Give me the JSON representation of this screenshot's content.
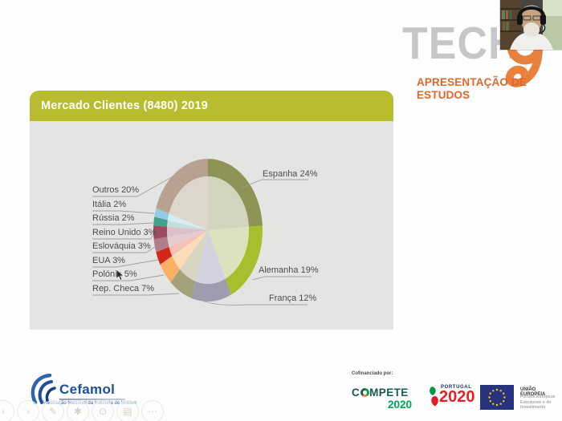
{
  "header": {
    "brand": "TECH",
    "brand_digit": "9",
    "subtitle": "APRESENTAÇÃO DE ESTUDOS",
    "brand_color": "#c7c7c7",
    "accent_color": "#e2662c"
  },
  "chart_data": {
    "type": "pie",
    "title": "Mercado Clientes (8480) 2019",
    "direction": "clockwise",
    "start_angle_deg": 0,
    "legend_position": "callout-labels",
    "title_bar_color": "#b7bd2e",
    "panel_color": "#e4e4e2",
    "slices": [
      {
        "name": "Espanha",
        "value": 24,
        "label": "Espanha 24%",
        "outer_color": "#8d9355",
        "inner_color": "#d2d5bd"
      },
      {
        "name": "Alemanha",
        "value": 19,
        "label": "Alemanha 19%",
        "outer_color": "#a8bf2d",
        "inner_color": "#dbe2bd"
      },
      {
        "name": "França",
        "value": 12,
        "label": "França 12%",
        "outer_color": "#9d9dae",
        "inner_color": "#d3d3df"
      },
      {
        "name": "Rep. Checa",
        "value": 7,
        "label": "Rep. Checa 7%",
        "outer_color": "#a5a17b",
        "inner_color": "#d8d6c3"
      },
      {
        "name": "Polónia",
        "value": 5,
        "label": "Polónia 5%",
        "outer_color": "#f8b065",
        "inner_color": "#fcdcb8"
      },
      {
        "name": "EUA",
        "value": 3,
        "label": "EUA 3%",
        "outer_color": "#d3271c",
        "inner_color": "#f5c0b5"
      },
      {
        "name": "Eslováquia",
        "value": 3,
        "label": "Eslováquia 3%",
        "outer_color": "#b17d88",
        "inner_color": "#e4ccd2"
      },
      {
        "name": "Reino Unido",
        "value": 3,
        "label": "Reino Unido 3%",
        "outer_color": "#9b4a5f",
        "inner_color": "#ddc0ca"
      },
      {
        "name": "Rússia",
        "value": 2,
        "label": "Rússia 2%",
        "outer_color": "#43a18a",
        "inner_color": "#c5e0d8"
      },
      {
        "name": "Itália",
        "value": 2,
        "label": "Itália 2%",
        "outer_color": "#93cce4",
        "inner_color": "#d9edf5"
      },
      {
        "name": "Outros",
        "value": 20,
        "label": "Outros 20%",
        "outer_color": "#b9a191",
        "inner_color": "#ded5cd"
      }
    ]
  },
  "footer": {
    "cefamol": {
      "name": "Cefamol",
      "subtitle": "Associação Nacional da Indústria de Moldes"
    },
    "controls": [
      {
        "glyph": "‹"
      },
      {
        "glyph": "›"
      },
      {
        "glyph": "✎"
      },
      {
        "glyph": "✱"
      },
      {
        "glyph": "⊙"
      },
      {
        "glyph": "▤"
      },
      {
        "glyph": "⋯"
      }
    ],
    "cofinance": {
      "label": "Cofinanciado por:",
      "compete_pre": "C",
      "compete_post": "MPETE",
      "compete_year": "2020",
      "portugal_word": "PORTUGAL",
      "portugal_year": "2020",
      "eu_title": "UNIÃO EUROPEIA",
      "eu_sub1": "Fundos Europeus",
      "eu_sub2": "Estruturais e de Investimento"
    }
  }
}
